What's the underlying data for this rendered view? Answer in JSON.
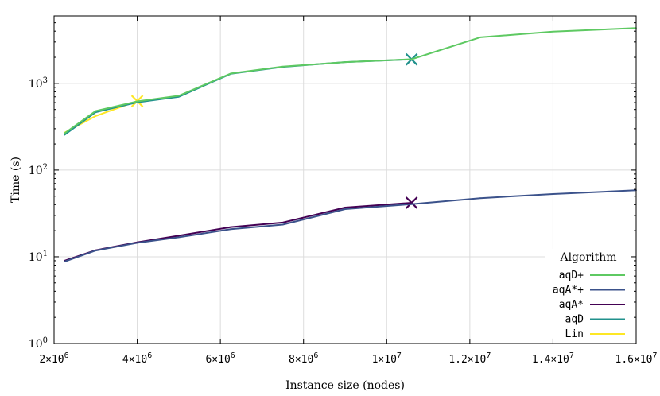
{
  "chart_data": {
    "type": "line",
    "xlabel": "Instance size (nodes)",
    "ylabel": "Time (s)",
    "xlim": [
      2000000,
      16000000
    ],
    "ylim": [
      1,
      6000
    ],
    "yscale": "log",
    "grid": true,
    "legend_position": "bottom-right",
    "legend_title": "Algorithm",
    "x_ticks": [
      {
        "value": 2000000,
        "base": "2×10",
        "exp": "6"
      },
      {
        "value": 4000000,
        "base": "4×10",
        "exp": "6"
      },
      {
        "value": 6000000,
        "base": "6×10",
        "exp": "6"
      },
      {
        "value": 8000000,
        "base": "8×10",
        "exp": "6"
      },
      {
        "value": 10000000,
        "base": "1×10",
        "exp": "7"
      },
      {
        "value": 12000000,
        "base": "1.2×10",
        "exp": "7"
      },
      {
        "value": 14000000,
        "base": "1.4×10",
        "exp": "7"
      },
      {
        "value": 16000000,
        "base": "1.6×10",
        "exp": "7"
      }
    ],
    "y_ticks": [
      {
        "value": 1,
        "base": "10",
        "exp": "0"
      },
      {
        "value": 10,
        "base": "10",
        "exp": "1"
      },
      {
        "value": 100,
        "base": "10",
        "exp": "2"
      },
      {
        "value": 1000,
        "base": "10",
        "exp": "3"
      }
    ],
    "series": [
      {
        "name": "aqD+",
        "color": "#5ec962",
        "points": [
          [
            2250000,
            265
          ],
          [
            3000000,
            480
          ],
          [
            4000000,
            620
          ],
          [
            5000000,
            720
          ],
          [
            6250000,
            1300
          ],
          [
            7500000,
            1560
          ],
          [
            9000000,
            1760
          ],
          [
            10600000,
            1900
          ],
          [
            12250000,
            3400
          ],
          [
            14000000,
            3950
          ],
          [
            16000000,
            4350
          ]
        ]
      },
      {
        "name": "aqA*+",
        "color": "#3b528b",
        "points": [
          [
            2250000,
            8.8
          ],
          [
            3000000,
            11.8
          ],
          [
            4000000,
            14.5
          ],
          [
            5000000,
            16.8
          ],
          [
            6250000,
            20.8
          ],
          [
            7500000,
            23.5
          ],
          [
            9000000,
            35.5
          ],
          [
            10600000,
            40.5
          ],
          [
            12250000,
            47.5
          ],
          [
            14000000,
            53
          ],
          [
            16000000,
            58.5
          ]
        ]
      },
      {
        "name": "aqA*",
        "color": "#440154",
        "end_marker": "x",
        "points": [
          [
            2250000,
            9.0
          ],
          [
            3000000,
            11.9
          ],
          [
            4000000,
            14.7
          ],
          [
            5000000,
            17.5
          ],
          [
            6250000,
            22.0
          ],
          [
            7500000,
            24.8
          ],
          [
            9000000,
            37.0
          ],
          [
            10600000,
            42.0
          ]
        ]
      },
      {
        "name": "aqD",
        "color": "#21918c",
        "end_marker": "x",
        "points": [
          [
            2250000,
            255
          ],
          [
            3000000,
            465
          ],
          [
            4000000,
            605
          ],
          [
            5000000,
            700
          ],
          [
            6250000,
            1290
          ],
          [
            7500000,
            1550
          ],
          [
            9000000,
            1760
          ],
          [
            10600000,
            1890
          ]
        ]
      },
      {
        "name": "Lin",
        "color": "#fde725",
        "end_marker": "x",
        "points": [
          [
            2250000,
            270
          ],
          [
            3000000,
            420
          ],
          [
            4000000,
            625
          ]
        ]
      }
    ]
  }
}
